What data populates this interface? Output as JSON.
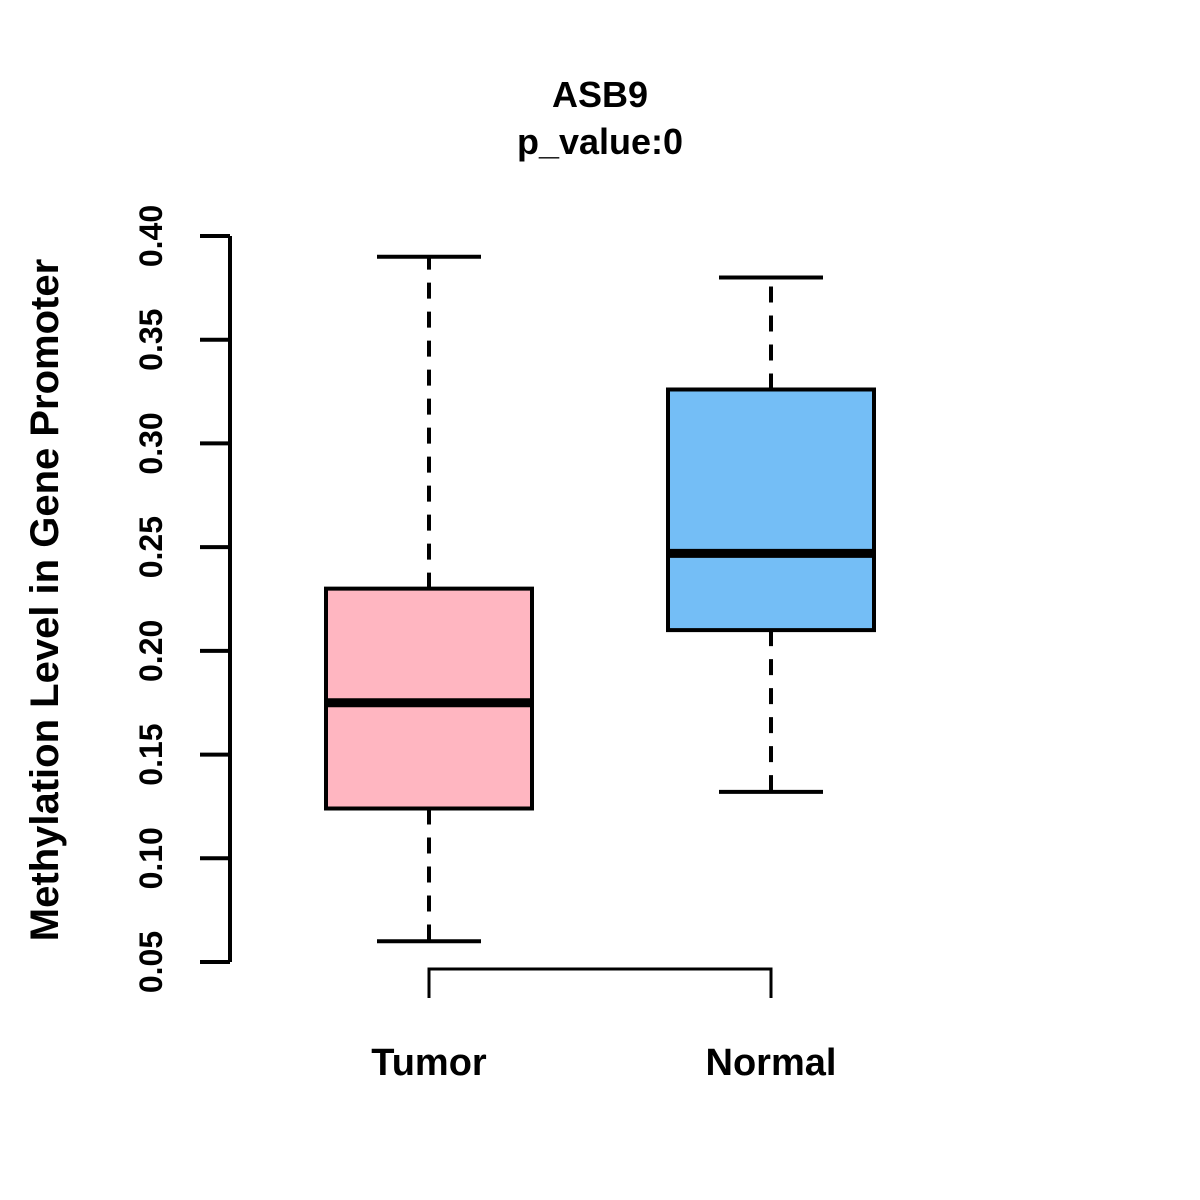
{
  "header": {
    "title": "ASB9",
    "subtitle": "p_value:0"
  },
  "chart_data": {
    "type": "boxplot",
    "title": "ASB9",
    "subtitle": "p_value:0",
    "xlabel": "",
    "ylabel": "Methylation Level in Gene Promoter",
    "ylim": [
      0.05,
      0.4
    ],
    "y_ticks": [
      "0.05",
      "0.10",
      "0.15",
      "0.20",
      "0.25",
      "0.30",
      "0.35",
      "0.40"
    ],
    "grid": false,
    "legend": "none",
    "categories": [
      "Tumor",
      "Normal"
    ],
    "series": [
      {
        "name": "Tumor",
        "fill": "#FFB6C1",
        "lower_whisker": 0.06,
        "q1": 0.124,
        "median": 0.175,
        "q3": 0.23,
        "upper_whisker": 0.39
      },
      {
        "name": "Normal",
        "fill": "#74BEF6",
        "lower_whisker": 0.132,
        "q1": 0.21,
        "median": 0.247,
        "q3": 0.326,
        "upper_whisker": 0.38
      }
    ],
    "stroke_color": "#000000",
    "whisker_style": "dashed"
  }
}
